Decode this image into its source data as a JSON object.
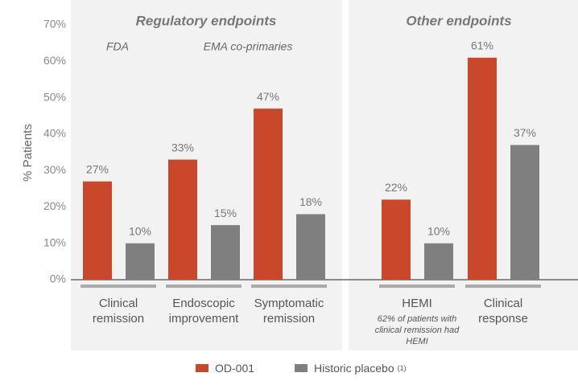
{
  "chart_data": {
    "type": "bar",
    "y_label": "% Patients",
    "panels": [
      {
        "title": "Regulatory endpoints",
        "annotations": [
          "FDA",
          "EMA co-primaries"
        ]
      },
      {
        "title": "Other endpoints"
      }
    ],
    "categories": [
      "Clinical remission",
      "Endoscopic improvement",
      "Symptomatic remission",
      "HEMI",
      "Clinical response"
    ],
    "category_notes": {
      "3": "62% of patients with clinical remission had HEMI"
    },
    "series": [
      {
        "name": "OD-001",
        "color": "#c9472b",
        "values": [
          27,
          33,
          47,
          22,
          61
        ],
        "value_labels": [
          "27%",
          "33%",
          "47%",
          "22%",
          "61%"
        ]
      },
      {
        "name": "Historic placebo",
        "name_superscript": "(1)",
        "color": "#7f7f7f",
        "values": [
          10,
          15,
          18,
          10,
          37
        ],
        "value_labels": [
          "10%",
          "15%",
          "18%",
          "10%",
          "37%"
        ]
      }
    ],
    "ylim": [
      0,
      70
    ],
    "yticks": [
      {
        "value": 0,
        "label": "0%"
      },
      {
        "value": 10,
        "label": "10%"
      },
      {
        "value": 20,
        "label": "20%"
      },
      {
        "value": 30,
        "label": "30%"
      },
      {
        "value": 40,
        "label": "40%"
      },
      {
        "value": 50,
        "label": "50%"
      },
      {
        "value": 60,
        "label": "60%"
      },
      {
        "value": 70,
        "label": "70%"
      }
    ]
  }
}
